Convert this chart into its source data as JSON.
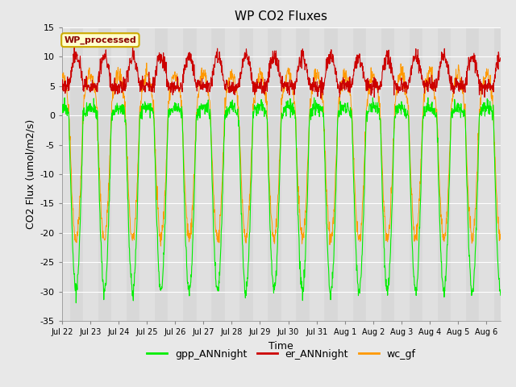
{
  "title": "WP CO2 Fluxes",
  "xlabel": "Time",
  "ylabel": "CO2 Flux (umol/m2/s)",
  "ylim": [
    -35,
    15
  ],
  "bg_color": "#e8e8e8",
  "plot_bg_color": "#d4d4d4",
  "legend_label": "WP_processed",
  "legend_text_color": "#8B0000",
  "legend_box_facecolor": "#ffffcc",
  "legend_box_edgecolor": "#ccaa00",
  "line_green": "#00ee00",
  "line_red": "#cc0000",
  "line_orange": "#ff9900",
  "tick_labels": [
    "Jul 22",
    "Jul 23",
    "Jul 24",
    "Jul 25",
    "Jul 26",
    "Jul 27",
    "Jul 28",
    "Jul 29",
    "Jul 30",
    "Jul 31",
    "Aug 1",
    "Aug 2",
    "Aug 3",
    "Aug 4",
    "Aug 5",
    "Aug 6"
  ],
  "n_days": 15.5,
  "points_per_day": 96,
  "title_fontsize": 11,
  "axis_fontsize": 9,
  "tick_fontsize": 8
}
